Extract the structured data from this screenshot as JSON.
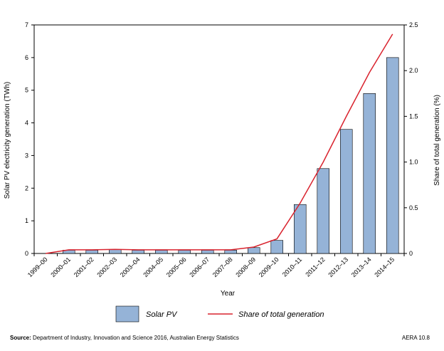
{
  "chart_data": {
    "type": "bar+line",
    "categories": [
      "1999–00",
      "2000–01",
      "2001–02",
      "2002–03",
      "2003–04",
      "2004–05",
      "2005–06",
      "2006–07",
      "2007–08",
      "2008–09",
      "2009–10",
      "2010–11",
      "2011–12",
      "2012–13",
      "2013–14",
      "2014–15"
    ],
    "series": [
      {
        "name": "Solar PV",
        "type": "bar",
        "axis": "left",
        "color": "#95b3d7",
        "values": [
          0,
          0.1,
          0.1,
          0.12,
          0.1,
          0.1,
          0.1,
          0.1,
          0.1,
          0.18,
          0.4,
          1.5,
          2.6,
          3.8,
          4.9,
          6.0
        ]
      },
      {
        "name": "Share of total generation",
        "type": "line",
        "axis": "right",
        "color": "#d9232e",
        "values": [
          0,
          0.04,
          0.04,
          0.045,
          0.04,
          0.04,
          0.04,
          0.04,
          0.04,
          0.07,
          0.16,
          0.55,
          1.0,
          1.5,
          1.98,
          2.4
        ]
      }
    ],
    "xlabel": "Year",
    "ylabel": "Solar PV electricity generation (TWh)",
    "y2label": "Share of total generation (%)",
    "ylim": [
      0,
      7
    ],
    "yticks": [
      "0",
      "1",
      "2",
      "3",
      "4",
      "5",
      "6",
      "7"
    ],
    "y2lim": [
      0,
      2.5
    ],
    "y2ticks": [
      "0",
      "0.5",
      "1.0",
      "1.5",
      "2.0",
      "2.5"
    ],
    "grid": false,
    "legend": "bottom"
  },
  "footer": {
    "source_label": "Source:",
    "source_text": " Department of Industry, Innovation and Science 2016, Australian Energy Statistics",
    "ref": "AERA 10.8"
  }
}
